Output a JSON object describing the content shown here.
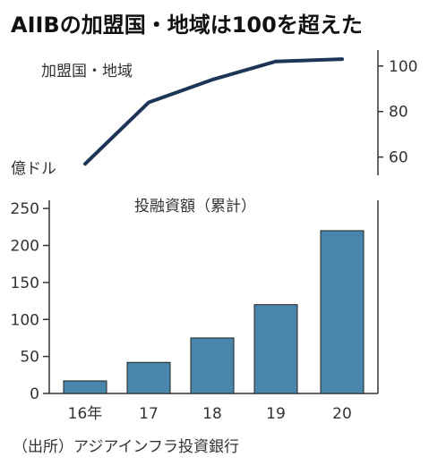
{
  "title": "AIIBの加盟国・地域は100を超えた",
  "source": "（出所）アジアインフラ投資銀行",
  "colors": {
    "line": "#1c3557",
    "bar": "#4a86ab",
    "bar_edge": "#222222",
    "axis": "#333333"
  },
  "chart_data": [
    {
      "type": "line",
      "label": "加盟国・地域",
      "x": [
        "16年",
        "17",
        "18",
        "19",
        "20"
      ],
      "values": [
        57,
        84,
        94,
        102,
        103
      ],
      "yticks": [
        60,
        80,
        100
      ],
      "ylim": [
        52,
        107
      ],
      "y_axis_side": "right"
    },
    {
      "type": "bar",
      "label": "投融資額（累計）",
      "unit": "億ドル",
      "categories": [
        "16年",
        "17",
        "18",
        "19",
        "20"
      ],
      "values": [
        17,
        42,
        75,
        120,
        220
      ],
      "yticks": [
        0,
        50,
        100,
        150,
        200,
        250
      ],
      "ylim": [
        0,
        255
      ],
      "y_axis_side": "left"
    }
  ]
}
